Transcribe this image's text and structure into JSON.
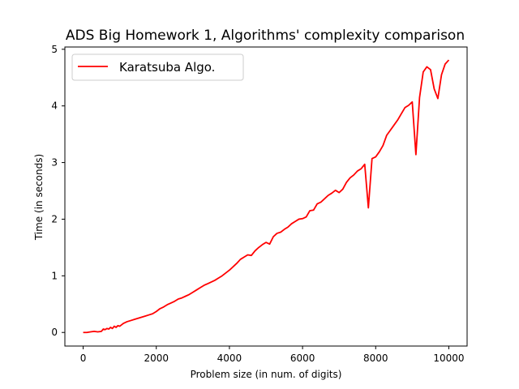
{
  "chart_data": {
    "type": "line",
    "title": "ADS Big Homework 1, Algorithms' complexity comparison",
    "xlabel": "Problem size (in num. of digits)",
    "ylabel": "Time (in seconds)",
    "xlim": [
      -500,
      10500
    ],
    "ylim": [
      -0.24,
      5.04
    ],
    "x_ticks": [
      0,
      2000,
      4000,
      6000,
      8000,
      10000
    ],
    "y_ticks": [
      0,
      1,
      2,
      3,
      4,
      5
    ],
    "x_tick_labels": [
      "0",
      "2000",
      "4000",
      "6000",
      "8000",
      "10000"
    ],
    "y_tick_labels": [
      "0",
      "1",
      "2",
      "3",
      "4",
      "5"
    ],
    "grid": false,
    "legend_position": "upper-left",
    "series": [
      {
        "name": "Karatsuba Algo.",
        "color": "#ff0000",
        "x": [
          0,
          100,
          200,
          300,
          400,
          500,
          550,
          600,
          650,
          700,
          750,
          800,
          850,
          900,
          950,
          1000,
          1100,
          1200,
          1300,
          1400,
          1500,
          1600,
          1700,
          1800,
          1900,
          2000,
          2100,
          2200,
          2300,
          2400,
          2500,
          2600,
          2700,
          2800,
          2900,
          3000,
          3100,
          3200,
          3300,
          3400,
          3500,
          3600,
          3700,
          3800,
          3900,
          4000,
          4100,
          4200,
          4300,
          4400,
          4500,
          4600,
          4700,
          4800,
          4900,
          5000,
          5100,
          5200,
          5300,
          5400,
          5500,
          5600,
          5700,
          5800,
          5900,
          6000,
          6100,
          6200,
          6300,
          6400,
          6500,
          6600,
          6700,
          6800,
          6900,
          7000,
          7100,
          7200,
          7300,
          7400,
          7500,
          7600,
          7700,
          7800,
          7900,
          8000,
          8100,
          8200,
          8300,
          8400,
          8500,
          8600,
          8700,
          8800,
          8900,
          9000,
          9100,
          9200,
          9300,
          9400,
          9500,
          9600,
          9700,
          9800,
          9900,
          10000
        ],
        "values": [
          0.0,
          0.0,
          0.01,
          0.02,
          0.01,
          0.02,
          0.06,
          0.05,
          0.07,
          0.06,
          0.09,
          0.07,
          0.11,
          0.09,
          0.12,
          0.11,
          0.16,
          0.19,
          0.21,
          0.23,
          0.25,
          0.27,
          0.29,
          0.31,
          0.33,
          0.37,
          0.42,
          0.45,
          0.49,
          0.52,
          0.55,
          0.59,
          0.61,
          0.64,
          0.67,
          0.71,
          0.75,
          0.79,
          0.83,
          0.86,
          0.89,
          0.92,
          0.96,
          1.0,
          1.05,
          1.1,
          1.16,
          1.22,
          1.29,
          1.33,
          1.37,
          1.36,
          1.44,
          1.5,
          1.55,
          1.59,
          1.56,
          1.69,
          1.75,
          1.77,
          1.82,
          1.86,
          1.92,
          1.96,
          2.0,
          2.01,
          2.04,
          2.15,
          2.16,
          2.27,
          2.3,
          2.36,
          2.42,
          2.46,
          2.51,
          2.47,
          2.53,
          2.65,
          2.73,
          2.78,
          2.85,
          2.89,
          2.97,
          2.2,
          3.07,
          3.1,
          3.19,
          3.3,
          3.48,
          3.57,
          3.66,
          3.75,
          3.86,
          3.97,
          4.01,
          4.07,
          3.14,
          4.15,
          4.6,
          4.69,
          4.64,
          4.3,
          4.13,
          4.55,
          4.74,
          4.81
        ]
      }
    ]
  }
}
